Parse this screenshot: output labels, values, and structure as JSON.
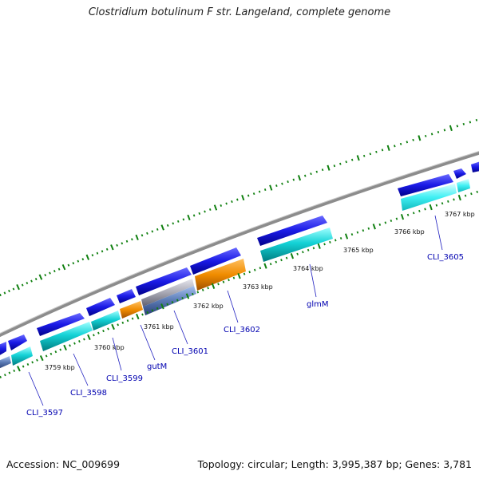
{
  "title": "Clostridium botulinum F str. Langeland, complete genome",
  "footer": {
    "accession": "Accession: NC_009699",
    "summary": "Topology: circular; Length: 3,995,387 bp; Genes: 3,781"
  },
  "colors": {
    "forward_gene": "#1a1ae6",
    "cds_cyan": "#14c8cc",
    "cds_orange": "#f08c00",
    "cds_gray": "#a8a8b4",
    "cds_steel": "#5a7ab4",
    "backbone": "#8c8c8c",
    "tick": "#108010",
    "label": "#0000b0"
  },
  "scale_labels": [
    "3759 kbp",
    "3760 kbp",
    "3761 kbp",
    "3762 kbp",
    "3763 kbp",
    "3764 kbp",
    "3765 kbp",
    "3766 kbp",
    "3767 kbp"
  ],
  "gene_labels": [
    "CLI_3597",
    "CLI_3598",
    "CLI_3599",
    "gutM",
    "CLI_3601",
    "CLI_3602",
    "glmM",
    "CLI_3605"
  ]
}
